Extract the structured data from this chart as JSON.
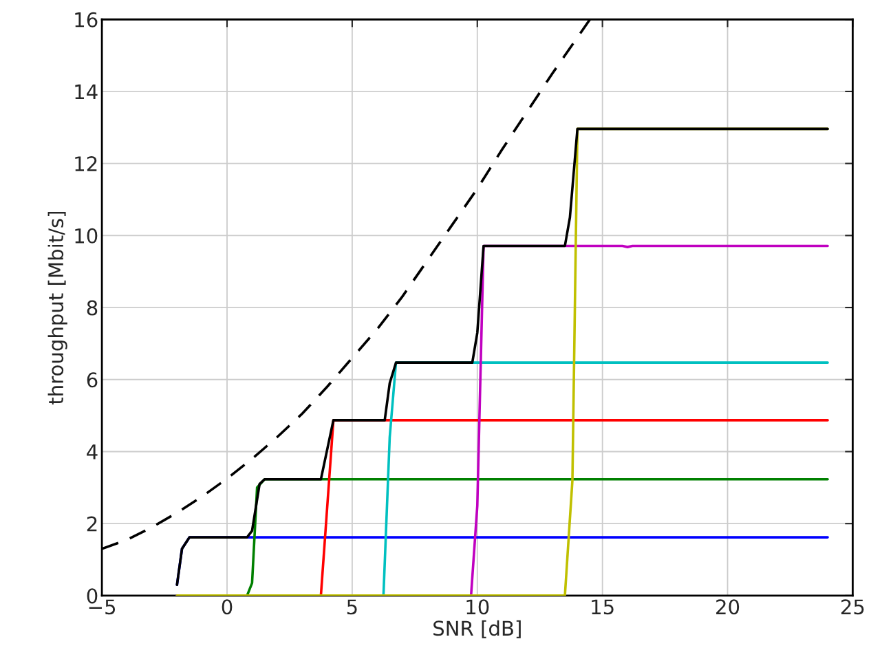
{
  "chart_data": {
    "type": "line",
    "xlabel": "SNR [dB]",
    "ylabel": "throughput [Mbit/s]",
    "xlim": [
      -5,
      25
    ],
    "ylim": [
      0,
      16
    ],
    "xticks": [
      {
        "value": -5,
        "label": "−5"
      },
      0,
      5,
      10,
      15,
      20,
      25
    ],
    "yticks": [
      0,
      2,
      4,
      6,
      8,
      10,
      12,
      14,
      16
    ],
    "grid": true,
    "marker": "none",
    "series": [
      {
        "color": "#0000ff",
        "x": [
          -2,
          -1.8,
          -1.5,
          24
        ],
        "values": [
          0.3,
          1.3,
          1.62,
          1.62
        ]
      },
      {
        "color": "#008000",
        "x": [
          -2,
          0.8,
          1.0,
          1.2,
          1.5,
          24
        ],
        "values": [
          0,
          0,
          0.35,
          3.0,
          3.23,
          3.23
        ]
      },
      {
        "color": "#ff0000",
        "x": [
          -2,
          3.75,
          4.25,
          24
        ],
        "values": [
          0,
          0,
          4.87,
          4.87
        ]
      },
      {
        "color": "#00c0c0",
        "x": [
          -2,
          6.25,
          6.5,
          6.75,
          24
        ],
        "values": [
          0,
          0,
          4.4,
          6.47,
          6.47
        ]
      },
      {
        "color": "#c000c0",
        "x": [
          -2,
          9.75,
          10.0,
          10.25,
          15.8,
          16.0,
          16.2,
          24
        ],
        "values": [
          0,
          0,
          2.5,
          9.71,
          9.71,
          9.68,
          9.71,
          9.71
        ]
      },
      {
        "color": "#c0c000",
        "x": [
          -2,
          13.5,
          13.8,
          14.0,
          24
        ],
        "values": [
          0,
          0,
          3.2,
          12.96,
          12.96
        ]
      },
      {
        "color": "#000000",
        "x": [
          -2,
          -1.8,
          -1.5,
          0.8,
          1.0,
          1.3,
          1.5,
          3.75,
          4.25,
          6.3,
          6.5,
          6.75,
          9.8,
          10.0,
          10.25,
          13.5,
          13.7,
          14.0,
          24
        ],
        "values": [
          0.3,
          1.3,
          1.62,
          1.62,
          1.8,
          3.1,
          3.23,
          3.23,
          4.87,
          4.87,
          5.9,
          6.47,
          6.47,
          7.3,
          9.71,
          9.71,
          10.5,
          12.96,
          12.96
        ]
      },
      {
        "color": "#000000",
        "line_style": "dashed",
        "x": [
          -5,
          -4,
          -3,
          -2,
          -1,
          0,
          1,
          2,
          3,
          4,
          5,
          6,
          7,
          8,
          9,
          10,
          11,
          12,
          13,
          14,
          14.5
        ],
        "values": [
          1.3,
          1.55,
          1.9,
          2.3,
          2.75,
          3.25,
          3.8,
          4.4,
          5.05,
          5.8,
          6.6,
          7.4,
          8.3,
          9.3,
          10.3,
          11.3,
          12.4,
          13.45,
          14.5,
          15.5,
          16
        ]
      }
    ]
  }
}
